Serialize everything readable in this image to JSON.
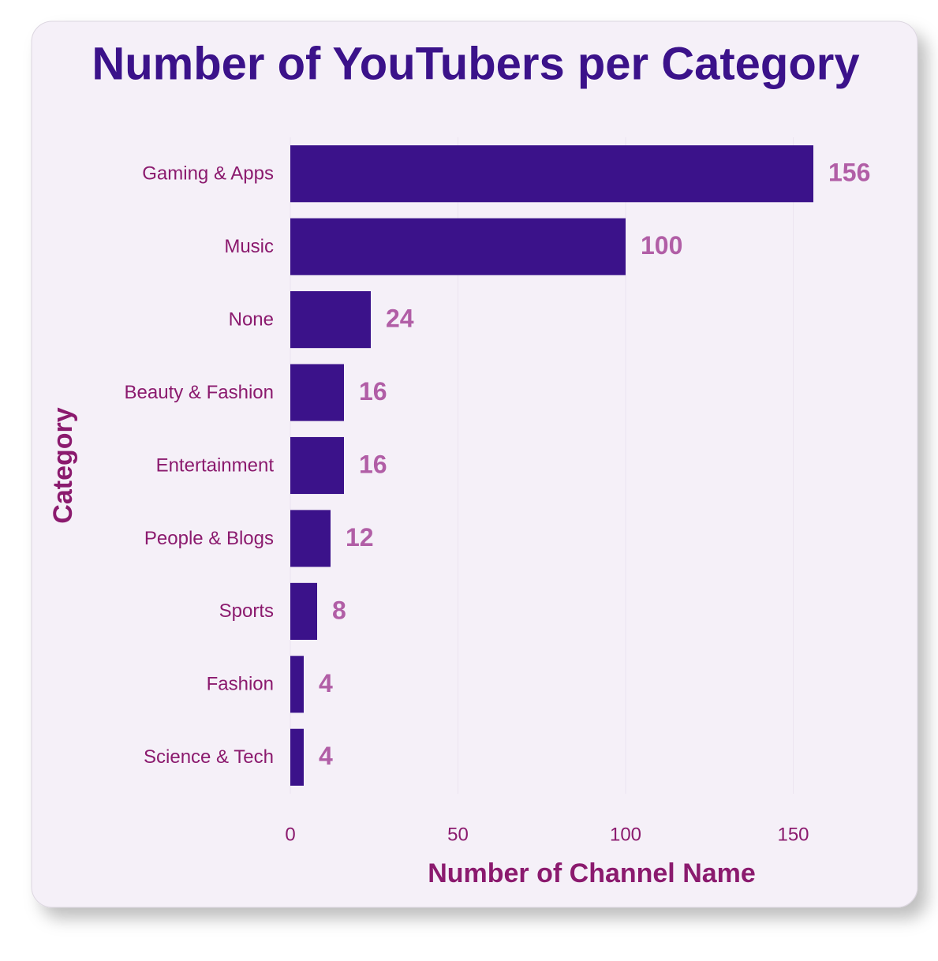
{
  "chart_data": {
    "type": "bar",
    "orientation": "horizontal",
    "title": "Number of YouTubers per Category",
    "x_label": "Number of Channel Name",
    "y_label": "Category",
    "categories": [
      "Gaming & Apps",
      "Music",
      "None",
      "Beauty & Fashion",
      "Entertainment",
      "People & Blogs",
      "Sports",
      "Fashion",
      "Science & Tech"
    ],
    "values": [
      156,
      100,
      24,
      16,
      16,
      12,
      8,
      4,
      4
    ],
    "color": "#3b128a",
    "xlim": [
      0,
      180
    ],
    "xticks": [
      0,
      50,
      100,
      150
    ],
    "grid": true
  }
}
